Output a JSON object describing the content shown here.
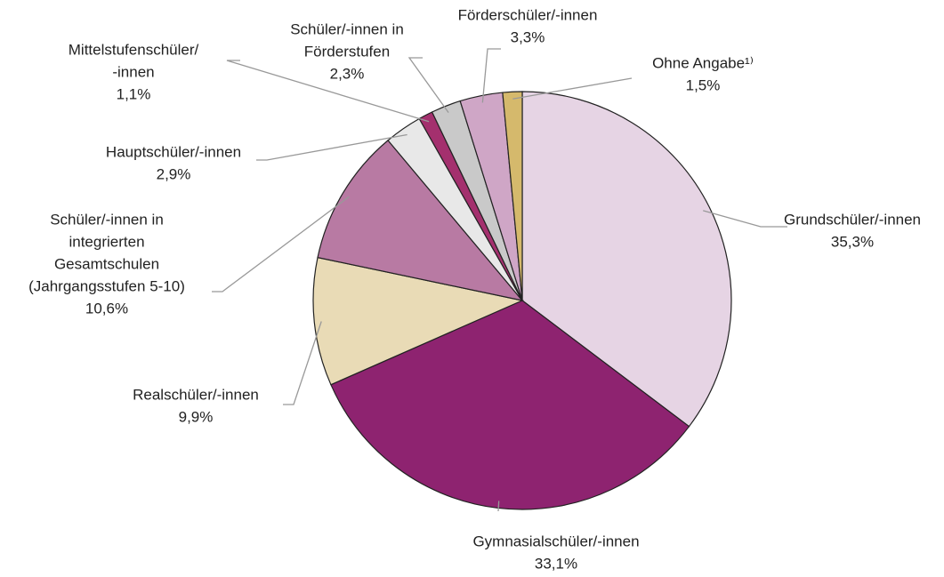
{
  "chart_data": {
    "type": "pie",
    "categories": [
      [
        "Grundschüler/-innen"
      ],
      [
        "Gymnasialschüler/-innen"
      ],
      [
        "Realschüler/-innen"
      ],
      [
        "Schüler/-innen in",
        "integrierten",
        "Gesamtschulen",
        "(Jahrgangsstufen 5-10)"
      ],
      [
        "Hauptschüler/-innen"
      ],
      [
        "Mittelstufenschüler/",
        "-innen"
      ],
      [
        "Schüler/-innen in",
        "Förderstufen"
      ],
      [
        "Förderschüler/-innen"
      ],
      [
        "Ohne Angabe¹⁾"
      ]
    ],
    "values": [
      35.3,
      33.1,
      9.9,
      10.6,
      2.9,
      1.1,
      2.3,
      3.3,
      1.5
    ],
    "value_labels": [
      "35,3%",
      "33,1%",
      "9,9%",
      "10,6%",
      "2,9%",
      "1,1%",
      "2,3%",
      "3,3%",
      "1,5%"
    ],
    "colors": [
      "#e6d4e4",
      "#8e2370",
      "#e9dbb6",
      "#b87aa3",
      "#e8e8e8",
      "#a4306e",
      "#c9c9c9",
      "#cfa6c6",
      "#d5b96c"
    ]
  }
}
